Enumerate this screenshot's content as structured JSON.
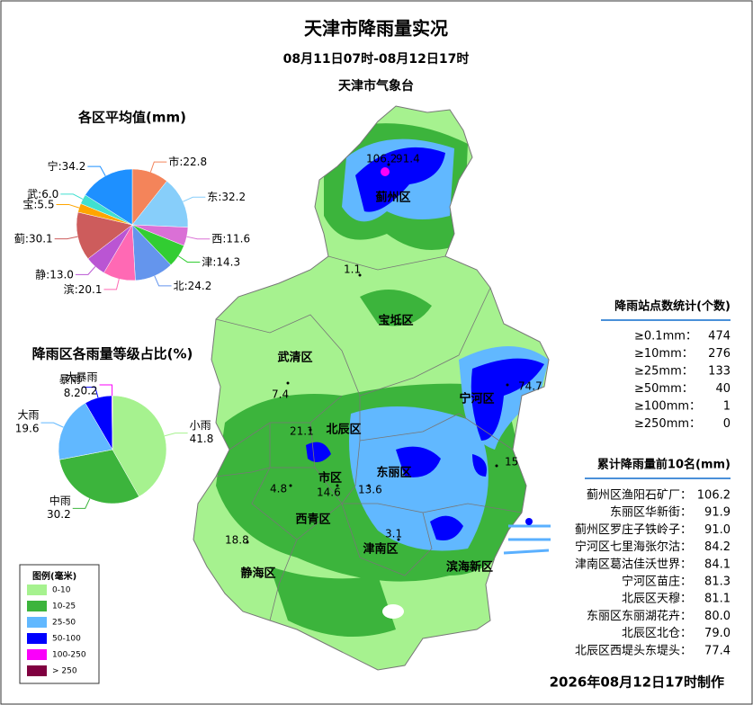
{
  "header": {
    "title": "天津市降雨量实况",
    "period": "08月11日07时-08月12日17时",
    "agency": "天津市气象台"
  },
  "chart_data": [
    {
      "type": "pie",
      "title": "各区平均值(mm)",
      "separator": ":",
      "categories": [
        "市",
        "东",
        "西",
        "津",
        "北",
        "滨",
        "静",
        "蓟",
        "宝",
        "武",
        "宁"
      ],
      "values": [
        22.8,
        32.2,
        11.6,
        14.3,
        24.2,
        20.1,
        13.0,
        30.1,
        5.5,
        6.0,
        34.2
      ],
      "value_labels": [
        "22.8",
        "32.2",
        "11.6",
        "14.3",
        "24.2",
        "20.1",
        "13.0",
        "30.1",
        "5.5",
        "6.0",
        "34.2"
      ],
      "colors": [
        "#f4845a",
        "#87cefa",
        "#da70d6",
        "#32cd32",
        "#6495ed",
        "#ff69b4",
        "#ba55d3",
        "#cd5c5c",
        "#ffa500",
        "#40e0d0",
        "#1e90ff"
      ]
    },
    {
      "type": "pie",
      "title": "降雨区各雨量等级占比(%)",
      "categories": [
        "小雨",
        "中雨",
        "大雨",
        "暴雨",
        "大暴雨"
      ],
      "values": [
        41.8,
        30.2,
        19.6,
        8.2,
        0.2
      ],
      "colors": [
        "#a6f28f",
        "#3cb43c",
        "#61b8ff",
        "#0000fe",
        "#fa00fa"
      ]
    }
  ],
  "map": {
    "districts": [
      "蓟州区",
      "宝坻区",
      "武清区",
      "宁河区",
      "北辰区",
      "市区",
      "东丽区",
      "西青区",
      "津南区",
      "静海区",
      "滨海新区"
    ],
    "stations": [
      "106.2",
      "91.4",
      "1.1",
      "7.4",
      "21.1",
      "74.7",
      "4.8",
      "14.6",
      "13.6",
      "15",
      "3.1",
      "18.8"
    ]
  },
  "legend": {
    "title": "图例(毫米)",
    "items": [
      {
        "label": "0-10",
        "color": "#a6f28f"
      },
      {
        "label": "10-25",
        "color": "#3cb43c"
      },
      {
        "label": "25-50",
        "color": "#61b8ff"
      },
      {
        "label": "50-100",
        "color": "#0000fe"
      },
      {
        "label": "100-250",
        "color": "#fa00fa"
      },
      {
        "label": "> 250",
        "color": "#800040"
      }
    ]
  },
  "station_stats": {
    "title": "降雨站点数统计(个数)",
    "rows": [
      {
        "label": "≥0.1mm：",
        "count": "474"
      },
      {
        "label": "≥10mm：",
        "count": "276"
      },
      {
        "label": "≥25mm：",
        "count": "133"
      },
      {
        "label": "≥50mm：",
        "count": "40"
      },
      {
        "label": "≥100mm：",
        "count": "1"
      },
      {
        "label": "≥250mm：",
        "count": "0"
      }
    ]
  },
  "top10": {
    "title": "累计降雨量前10名(mm)",
    "rows": [
      {
        "name": "蓟州区渔阳石矿厂：",
        "value": "106.2"
      },
      {
        "name": "东丽区华新街：",
        "value": "91.9"
      },
      {
        "name": "蓟州区罗庄子铁岭子：",
        "value": "91.0"
      },
      {
        "name": "宁河区七里海张尔沽：",
        "value": "84.2"
      },
      {
        "name": "津南区葛沽佳沃世界：",
        "value": "84.1"
      },
      {
        "name": "宁河区苗庄：",
        "value": "81.3"
      },
      {
        "name": "北辰区天穆：",
        "value": "81.1"
      },
      {
        "name": "东丽区东丽湖花卉：",
        "value": "80.0"
      },
      {
        "name": "北辰区北仓：",
        "value": "79.0"
      },
      {
        "name": "北辰区西堤头东堤头：",
        "value": "77.4"
      }
    ]
  },
  "footer": "2026年08月12日17时制作"
}
